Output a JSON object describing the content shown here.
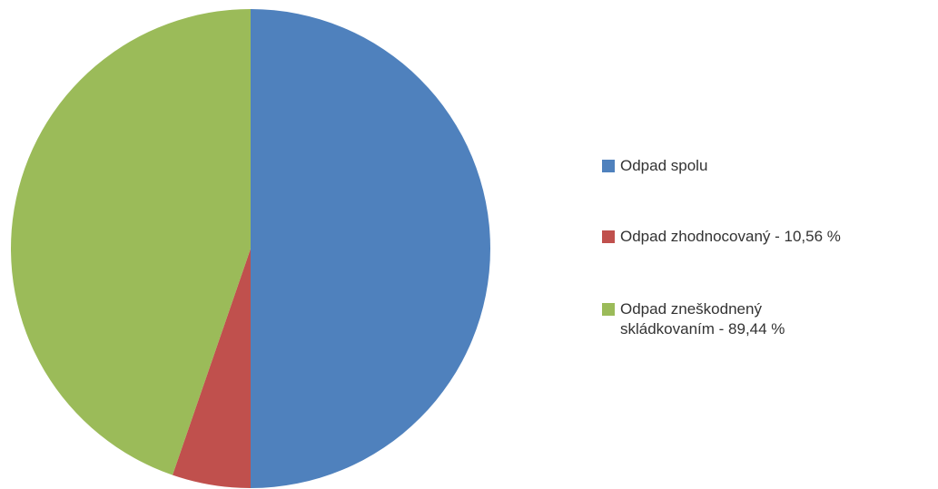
{
  "chart_data": {
    "type": "pie",
    "series": [
      {
        "name": "Odpad spolu",
        "color": "#4f81bd",
        "values": [
          100
        ]
      },
      {
        "name": "Odpad zhodnocovaný - 10,56 %",
        "color": "#c0504d",
        "values": [
          10.56
        ]
      },
      {
        "name": "Odpad zneškodnený skládkovaním - 89,44 %",
        "color": "#9bbb59",
        "values": [
          89.44
        ]
      }
    ]
  }
}
